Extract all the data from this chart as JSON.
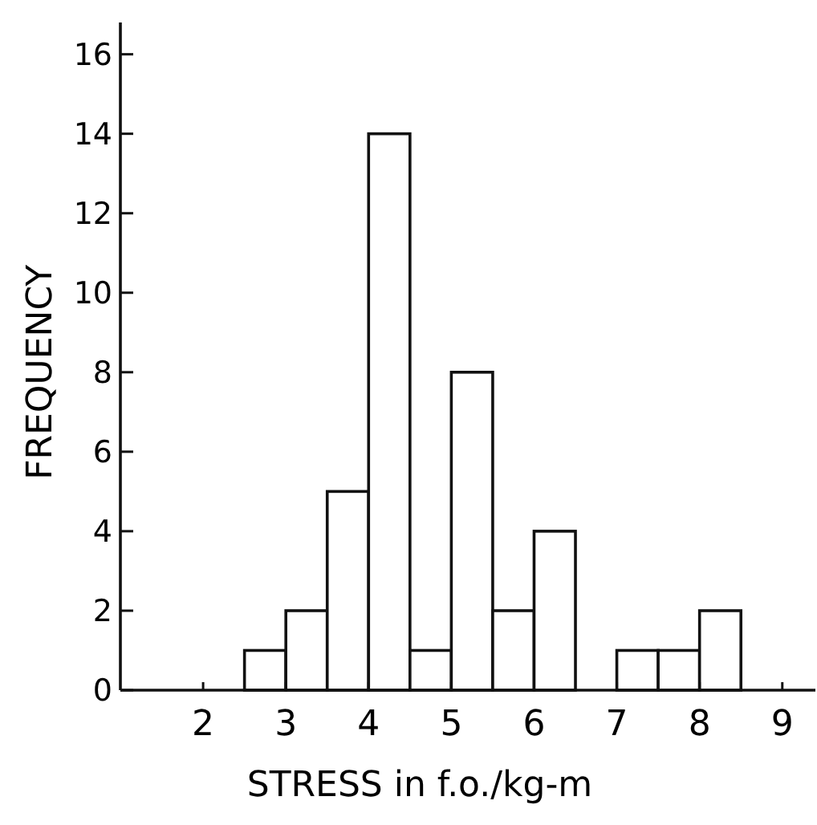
{
  "chart_data": {
    "type": "histogram",
    "xlabel": "STRESS in f.o./kg-m",
    "ylabel": "FREQUENCY",
    "bins": [
      2.5,
      3,
      3.5,
      4,
      4.5,
      5,
      5.5,
      6,
      6.5,
      7,
      7.5,
      8,
      8.5
    ],
    "values": [
      1,
      2,
      5,
      14,
      1,
      8,
      2,
      4,
      0,
      1,
      1,
      2
    ],
    "color": "#ffffff",
    "xlim": [
      1,
      9.4
    ],
    "xticks": [
      2,
      3,
      4,
      5,
      6,
      7,
      8,
      9
    ],
    "ylim": [
      0,
      16.8
    ],
    "yticks": [
      0,
      2,
      4,
      6,
      8,
      10,
      12,
      14,
      16
    ],
    "grid": false
  }
}
